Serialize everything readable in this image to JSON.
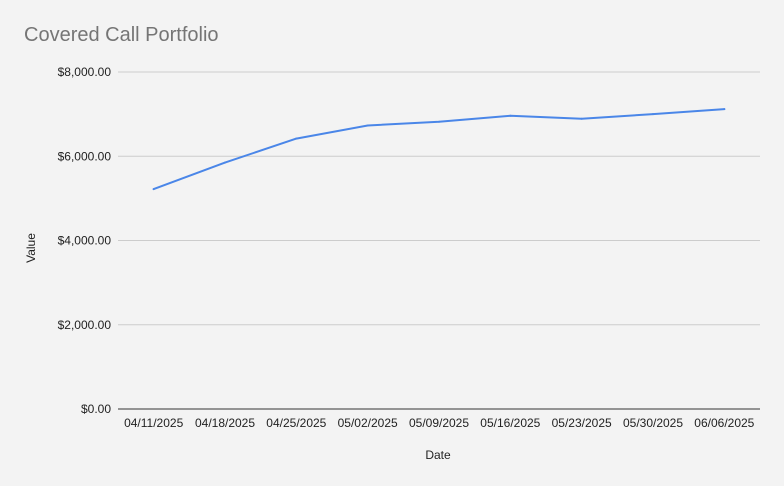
{
  "chart_data": {
    "type": "line",
    "title": "Covered Call Portfolio",
    "xlabel": "Date",
    "ylabel": "Value",
    "categories": [
      "04/11/2025",
      "04/18/2025",
      "04/25/2025",
      "05/02/2025",
      "05/09/2025",
      "05/16/2025",
      "05/23/2025",
      "05/30/2025",
      "06/06/2025"
    ],
    "series": [
      {
        "values": [
          5220,
          5850,
          6420,
          6730,
          6820,
          6960,
          6890,
          7000,
          7120
        ],
        "color": "#4a86e8"
      }
    ],
    "ylim": [
      0,
      8000
    ],
    "yticks": [
      0,
      2000,
      4000,
      6000,
      8000
    ],
    "ytick_labels": [
      "$0.00",
      "$2,000.00",
      "$4,000.00",
      "$6,000.00",
      "$8,000.00"
    ],
    "grid": true,
    "legend": "none"
  }
}
